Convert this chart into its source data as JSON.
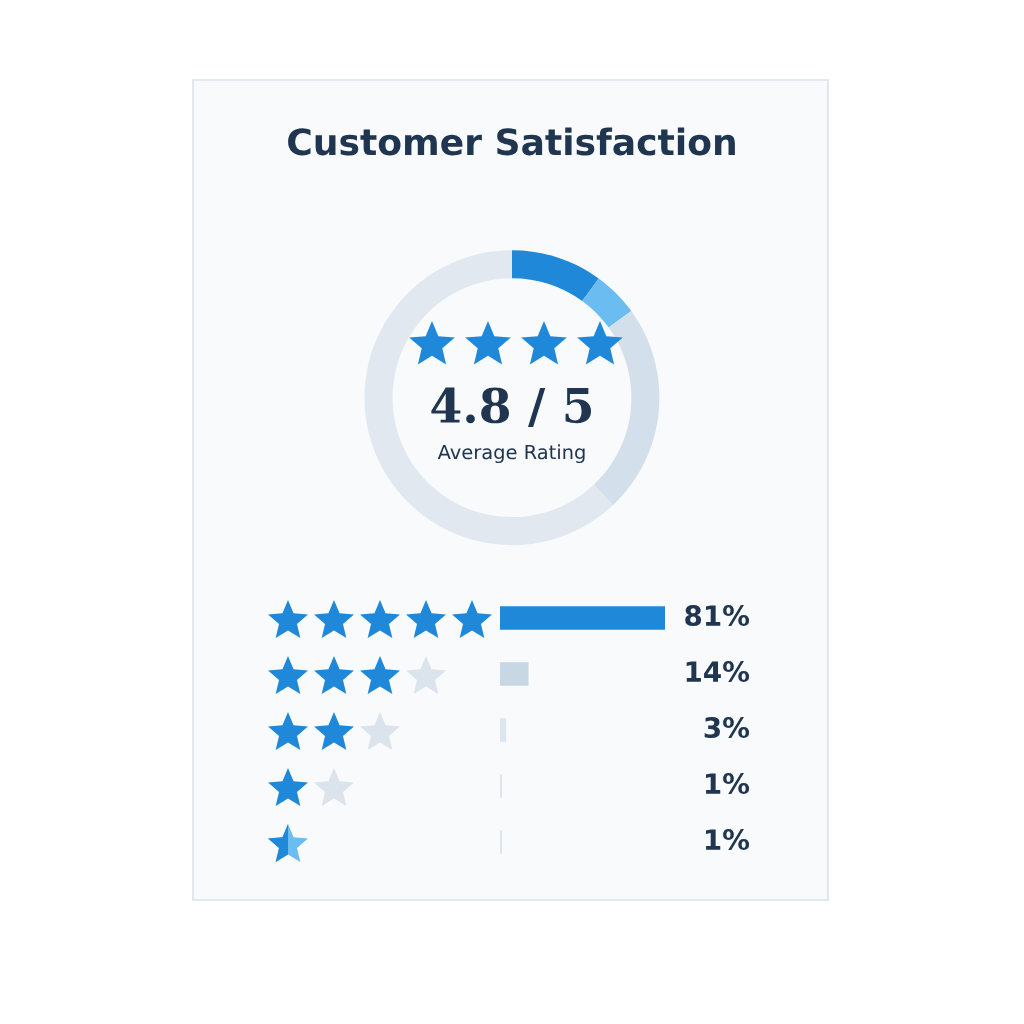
{
  "chart_data": [
    {
      "type": "donut",
      "title": "Customer Satisfaction",
      "categories": [
        null,
        null,
        null,
        null
      ],
      "values": [
        10,
        5,
        23,
        62
      ],
      "colors": [
        "#1f88d9",
        "#6bbcf0",
        "#d3dfea",
        "#e1e8f0"
      ],
      "annotations": [
        "4.8 / 5",
        "Average Rating"
      ]
    },
    {
      "type": "bar",
      "orientation": "horizontal",
      "categories": [
        null,
        null,
        null,
        null,
        null
      ],
      "values": [
        81,
        14,
        3,
        1,
        1
      ],
      "colors": [
        "#1f88d9",
        "#c8d7e4",
        "#dde5ee",
        "#dde5ee",
        "#dde5ee"
      ],
      "value_labels": [
        "81%",
        "14%",
        "3%",
        "1%",
        "1%"
      ],
      "xlim": [
        0,
        81
      ]
    }
  ]
}
